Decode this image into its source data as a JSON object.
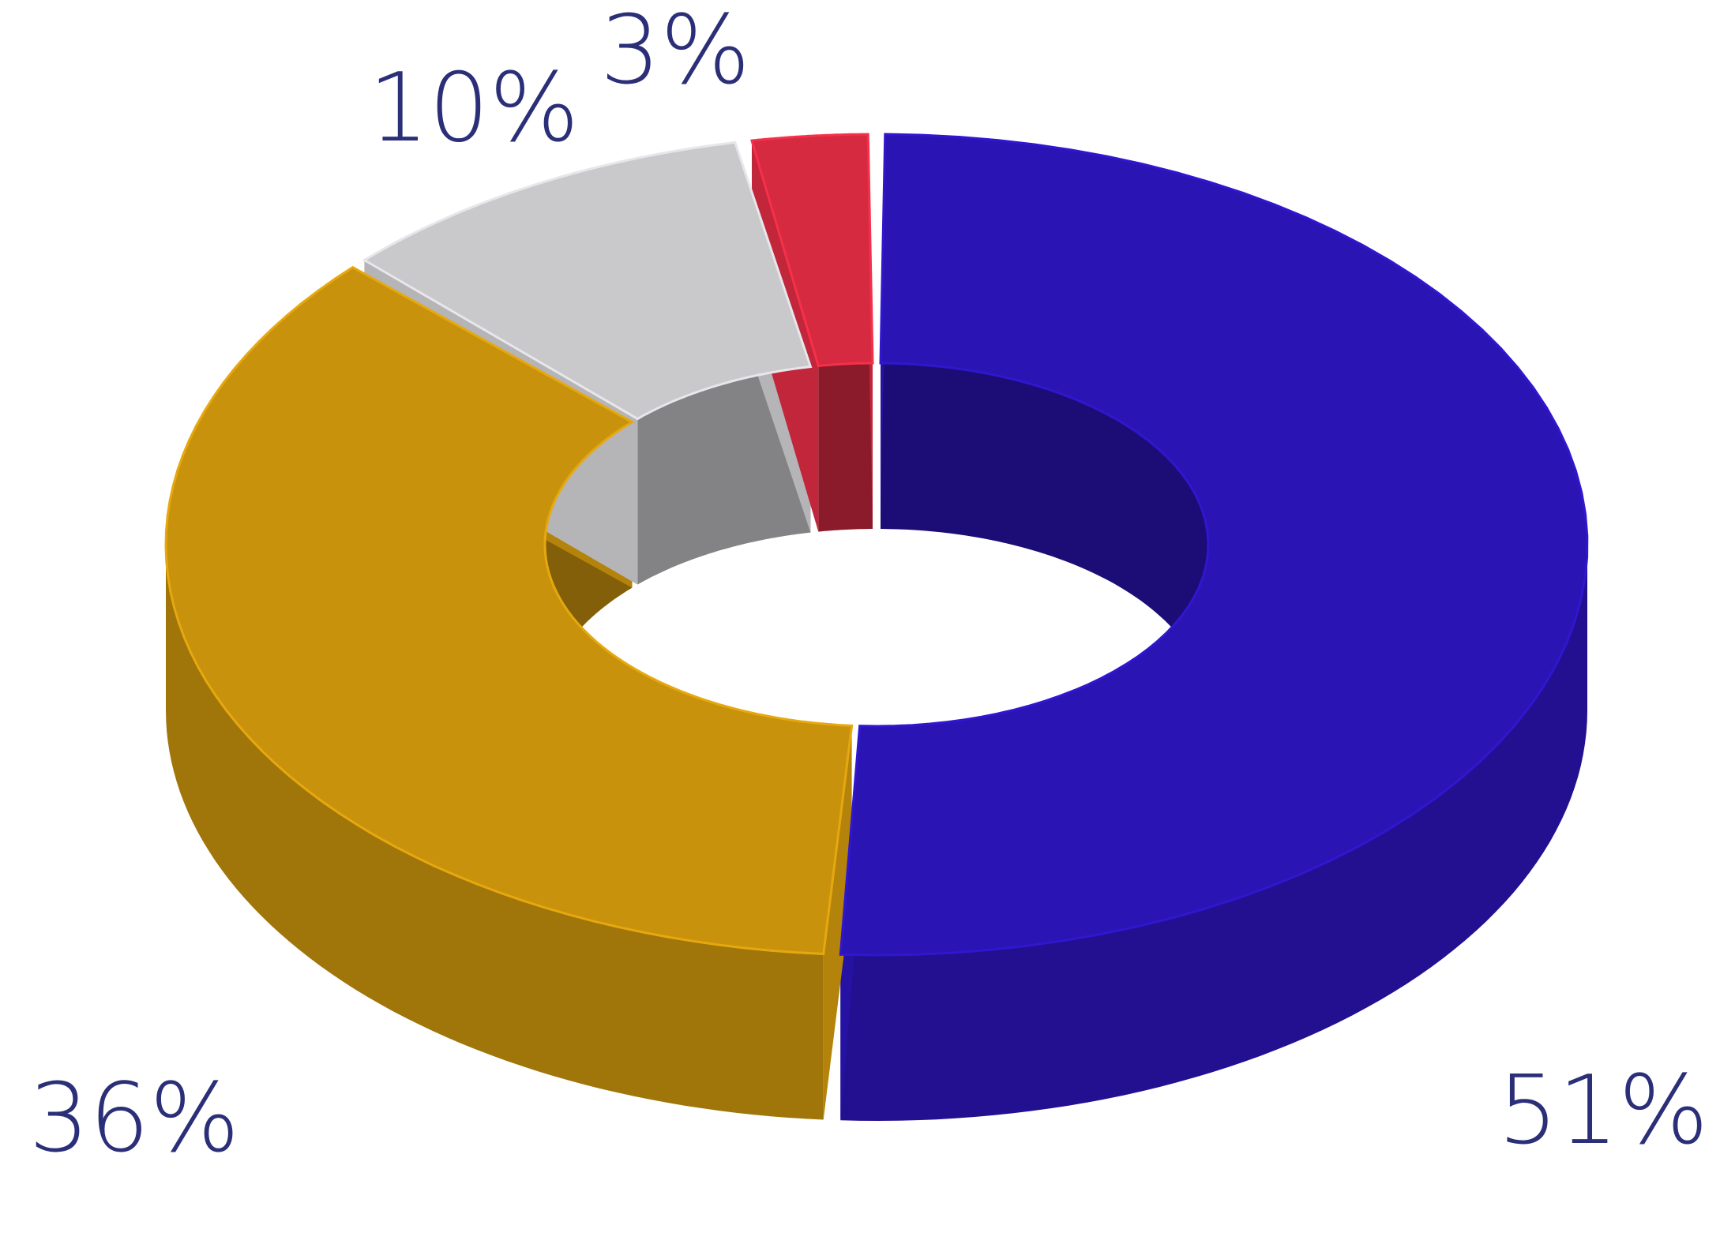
{
  "chart_data": {
    "type": "donut",
    "values": [
      51,
      36,
      10,
      3
    ],
    "value_labels": [
      "51%",
      "36%",
      "10%",
      "3%"
    ],
    "colors": [
      "#2a14b4",
      "#c8920c",
      "#c9c9cc",
      "#d62a40"
    ]
  }
}
